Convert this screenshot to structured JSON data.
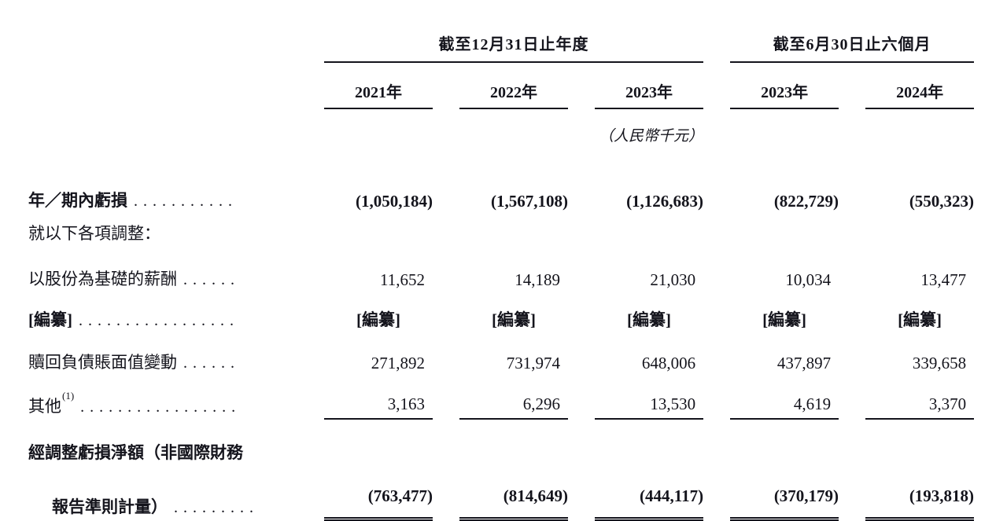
{
  "document": {
    "header": {
      "group_fy": "截至12月31日止年度",
      "group_interim": "截至6月30日止六個月",
      "columns": [
        "2021年",
        "2022年",
        "2023年",
        "2023年",
        "2024年"
      ],
      "unit_note": "（人民幣千元）"
    },
    "rows": [
      {
        "label": "年／期內虧損",
        "leader": "...........",
        "values": [
          "(1,050,184)",
          "(1,567,108)",
          "(1,126,683)",
          "(822,729)",
          "(550,323)"
        ]
      },
      {
        "label": "就以下各項調整："
      },
      {
        "label": "以股份為基礎的薪酬",
        "leader": "......",
        "values": [
          "11,652",
          "14,189",
          "21,030",
          "10,034",
          "13,477"
        ]
      },
      {
        "label": "[編纂]",
        "leader": ".................",
        "values": [
          "[編纂]",
          "[編纂]",
          "[編纂]",
          "[編纂]",
          "[編纂]"
        ]
      },
      {
        "label": "贖回負債賬面值變動",
        "leader": "......",
        "values": [
          "271,892",
          "731,974",
          "648,006",
          "437,897",
          "339,658"
        ]
      },
      {
        "label": "其他",
        "superscript": "(1)",
        "leader": ".................",
        "values": [
          "3,163",
          "6,296",
          "13,530",
          "4,619",
          "3,370"
        ]
      },
      {
        "label": "經調整虧損淨額（非國際財務"
      },
      {
        "label": "報告準則計量）",
        "leader": ".........",
        "values": [
          "(763,477)",
          "(814,649)",
          "(444,117)",
          "(370,179)",
          "(193,818)"
        ]
      }
    ]
  }
}
